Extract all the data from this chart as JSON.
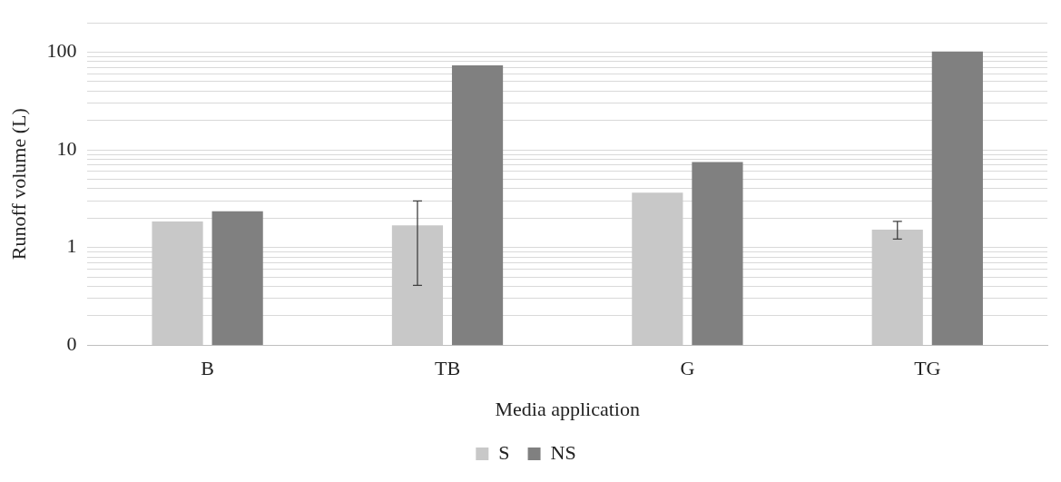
{
  "chart_data": {
    "type": "bar",
    "xlabel": "Media application",
    "ylabel": "Runoff volume (L)",
    "categories": [
      "B",
      "TB",
      "G",
      "TG"
    ],
    "series": [
      {
        "name": "S",
        "color": "#c8c8c8",
        "values": [
          1.85,
          1.69,
          3.65,
          1.52
        ],
        "errors": [
          null,
          [
            0.41,
            3.0
          ],
          null,
          [
            1.22,
            1.85
          ]
        ]
      },
      {
        "name": "NS",
        "color": "#808080",
        "values": [
          2.35,
          73.6,
          7.5,
          102
        ]
      }
    ],
    "log": "y",
    "ylim": [
      0.1,
      200
    ],
    "yticks": [
      {
        "value": 0.1,
        "label": "0"
      },
      {
        "value": 0.2,
        "label": null
      },
      {
        "value": 0.3,
        "label": null
      },
      {
        "value": 0.4,
        "label": null
      },
      {
        "value": 0.5,
        "label": null
      },
      {
        "value": 0.6,
        "label": null
      },
      {
        "value": 0.7,
        "label": null
      },
      {
        "value": 0.8,
        "label": null
      },
      {
        "value": 0.9,
        "label": null
      },
      1,
      {
        "value": 2,
        "label": null
      },
      {
        "value": 3,
        "label": null
      },
      {
        "value": 4,
        "label": null
      },
      {
        "value": 5,
        "label": null
      },
      {
        "value": 6,
        "label": null
      },
      {
        "value": 7,
        "label": null
      },
      {
        "value": 8,
        "label": null
      },
      {
        "value": 9,
        "label": null
      },
      10,
      {
        "value": 20,
        "label": null
      },
      {
        "value": 30,
        "label": null
      },
      {
        "value": 40,
        "label": null
      },
      {
        "value": 50,
        "label": null
      },
      {
        "value": 60,
        "label": null
      },
      {
        "value": 70,
        "label": null
      },
      {
        "value": 80,
        "label": null
      },
      {
        "value": 90,
        "label": null
      },
      100,
      {
        "value": 200,
        "label": null
      }
    ],
    "grid": "y",
    "legend": "bottom"
  }
}
